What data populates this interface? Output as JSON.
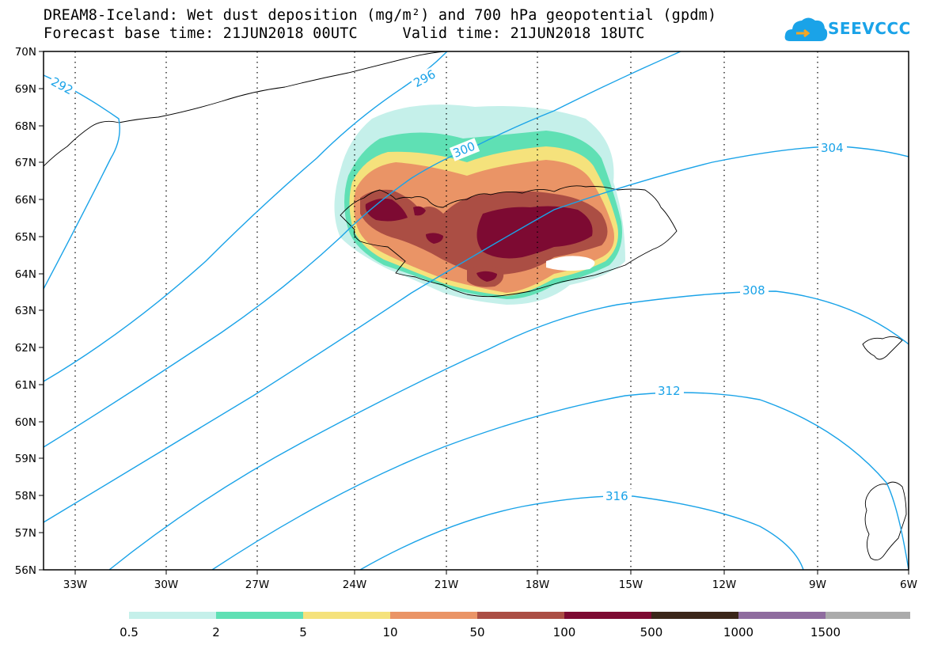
{
  "header": {
    "title_line1": "DREAM8-Iceland: Wet dust deposition (mg/m²) and 700 hPa geopotential (gpdm)",
    "title_line2": "Forecast base time: 21JUN2018 00UTC     Valid time: 21JUN2018 18UTC"
  },
  "logo": {
    "text": "SEEVCCC",
    "icon": "cloud-icon",
    "color": "#1aa3e8"
  },
  "map": {
    "lat_labels": [
      "70N",
      "69N",
      "68N",
      "67N",
      "66N",
      "65N",
      "64N",
      "63N",
      "62N",
      "61N",
      "60N",
      "59N",
      "58N",
      "57N",
      "56N"
    ],
    "lon_labels": [
      "33W",
      "30W",
      "27W",
      "24W",
      "21W",
      "18W",
      "15W",
      "12W",
      "9W",
      "6W"
    ],
    "contour_color": "#1aa3e8",
    "contour_labels": [
      "292",
      "296",
      "300",
      "304",
      "308",
      "312",
      "316"
    ]
  },
  "legend": {
    "thresholds": [
      "0.5",
      "2",
      "5",
      "10",
      "50",
      "100",
      "500",
      "1000",
      "1500"
    ],
    "colors": [
      "#c5f0ea",
      "#5fe0b4",
      "#f5e27c",
      "#ea9466",
      "#ab4e44",
      "#7d0a32",
      "#3b2619",
      "#8f6c9f",
      "#ababab"
    ]
  }
}
